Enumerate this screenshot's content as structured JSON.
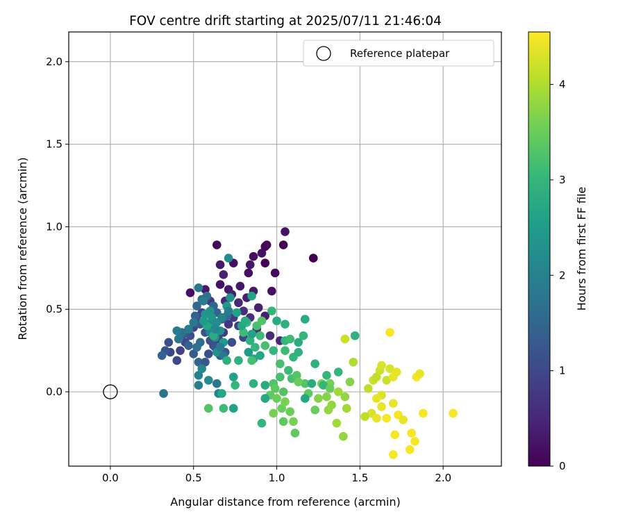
{
  "chart_data": {
    "type": "scatter",
    "title": "FOV centre drift starting at 2025/07/11 21:46:04",
    "xlabel": "Angular distance from reference (arcmin)",
    "ylabel": "Rotation from reference (arcmin)",
    "xlim": [
      -0.25,
      2.35
    ],
    "ylim": [
      -0.45,
      2.18
    ],
    "x_ticks": [
      0.0,
      0.5,
      1.0,
      1.5,
      2.0
    ],
    "x_tick_labels": [
      "0.0",
      "0.5",
      "1.0",
      "1.5",
      "2.0"
    ],
    "y_ticks": [
      0.0,
      0.5,
      1.0,
      1.5,
      2.0
    ],
    "y_tick_labels": [
      "0.0",
      "0.5",
      "1.0",
      "1.5",
      "2.0"
    ],
    "grid": true,
    "legend": {
      "position": "top-right",
      "entries": [
        {
          "label": "Reference platepar",
          "marker": "open-circle"
        }
      ]
    },
    "reference_point": {
      "x": 0.0,
      "y": 0.0
    },
    "colormap": "viridis",
    "colorbar": {
      "label": "Hours from first FF file",
      "range": [
        0,
        4.55
      ],
      "ticks": [
        0,
        1,
        2,
        3,
        4
      ],
      "tick_labels": [
        "0",
        "1",
        "2",
        "3",
        "4"
      ],
      "stops": [
        "#440154",
        "#482878",
        "#3e4989",
        "#31688e",
        "#26828e",
        "#1f9e89",
        "#35b779",
        "#6ece58",
        "#b5de2b",
        "#fde725"
      ]
    },
    "points": [
      [
        0.48,
        0.6,
        0.2
      ],
      [
        0.57,
        0.62,
        0.3
      ],
      [
        0.64,
        0.89,
        0.1
      ],
      [
        0.66,
        0.77,
        0.3
      ],
      [
        0.68,
        0.71,
        0.4
      ],
      [
        0.71,
        0.62,
        0.3
      ],
      [
        0.74,
        0.78,
        0.2
      ],
      [
        0.78,
        0.64,
        0.3
      ],
      [
        0.82,
        0.57,
        0.4
      ],
      [
        0.83,
        0.72,
        0.2
      ],
      [
        0.84,
        0.77,
        0.3
      ],
      [
        0.86,
        0.82,
        0.2
      ],
      [
        0.86,
        0.61,
        0.3
      ],
      [
        0.89,
        0.51,
        0.4
      ],
      [
        0.91,
        0.84,
        0.2
      ],
      [
        0.93,
        0.88,
        0.1
      ],
      [
        0.93,
        0.78,
        0.0
      ],
      [
        0.94,
        0.89,
        0.1
      ],
      [
        0.97,
        0.61,
        0.2
      ],
      [
        0.99,
        0.72,
        0.1
      ],
      [
        1.04,
        0.89,
        0.0
      ],
      [
        1.05,
        0.97,
        0.2
      ],
      [
        1.22,
        0.81,
        0.0
      ],
      [
        0.66,
        0.65,
        0.2
      ],
      [
        0.69,
        0.55,
        0.5
      ],
      [
        0.73,
        0.59,
        0.4
      ],
      [
        0.77,
        0.54,
        0.5
      ],
      [
        0.8,
        0.49,
        0.6
      ],
      [
        0.84,
        0.45,
        0.6
      ],
      [
        0.88,
        0.38,
        0.7
      ],
      [
        0.93,
        0.46,
        0.4
      ],
      [
        0.96,
        0.34,
        0.6
      ],
      [
        1.02,
        0.31,
        0.5
      ],
      [
        0.6,
        0.55,
        0.8
      ],
      [
        0.55,
        0.48,
        0.9
      ],
      [
        0.52,
        0.44,
        1.0
      ],
      [
        0.5,
        0.39,
        1.0
      ],
      [
        0.48,
        0.34,
        1.1
      ],
      [
        0.45,
        0.3,
        1.0
      ],
      [
        0.42,
        0.25,
        0.9
      ],
      [
        0.4,
        0.19,
        1.0
      ],
      [
        0.35,
        0.3,
        1.1
      ],
      [
        0.36,
        0.24,
        1.0
      ],
      [
        0.33,
        0.25,
        1.2
      ],
      [
        0.31,
        0.22,
        1.4
      ],
      [
        0.44,
        0.35,
        1.3
      ],
      [
        0.47,
        0.28,
        1.4
      ],
      [
        0.5,
        0.23,
        1.3
      ],
      [
        0.53,
        0.18,
        1.5
      ],
      [
        0.57,
        0.18,
        1.2
      ],
      [
        0.59,
        0.23,
        1.1
      ],
      [
        0.62,
        0.28,
        1.0
      ],
      [
        0.65,
        0.32,
        0.9
      ],
      [
        0.68,
        0.36,
        0.8
      ],
      [
        0.71,
        0.41,
        0.7
      ],
      [
        0.74,
        0.45,
        0.8
      ],
      [
        0.77,
        0.4,
        0.9
      ],
      [
        0.8,
        0.33,
        1.0
      ],
      [
        0.73,
        0.3,
        1.1
      ],
      [
        0.69,
        0.24,
        1.2
      ],
      [
        0.66,
        0.22,
        1.3
      ],
      [
        0.63,
        0.27,
        1.2
      ],
      [
        0.6,
        0.31,
        1.1
      ],
      [
        0.57,
        0.36,
        1.2
      ],
      [
        0.54,
        0.41,
        1.3
      ],
      [
        0.51,
        0.46,
        1.4
      ],
      [
        0.52,
        0.52,
        1.5
      ],
      [
        0.55,
        0.56,
        1.6
      ],
      [
        0.58,
        0.58,
        1.7
      ],
      [
        0.62,
        0.52,
        1.5
      ],
      [
        0.64,
        0.48,
        1.4
      ],
      [
        0.67,
        0.44,
        1.5
      ],
      [
        0.7,
        0.46,
        1.6
      ],
      [
        0.54,
        0.3,
        1.6
      ],
      [
        0.52,
        0.27,
        1.7
      ],
      [
        0.5,
        0.42,
        1.8
      ],
      [
        0.47,
        0.38,
        1.9
      ],
      [
        0.43,
        0.36,
        1.7
      ],
      [
        0.41,
        0.32,
        1.8
      ],
      [
        0.4,
        0.37,
        1.9
      ],
      [
        0.53,
        0.63,
        1.8
      ],
      [
        0.56,
        0.55,
        1.9
      ],
      [
        0.59,
        0.41,
        2.0
      ],
      [
        0.6,
        0.36,
        2.1
      ],
      [
        0.63,
        0.33,
        2.2
      ],
      [
        0.53,
        0.1,
        2.0
      ],
      [
        0.53,
        0.04,
        1.9
      ],
      [
        0.55,
        0.14,
        2.1
      ],
      [
        0.59,
        0.07,
        2.2
      ],
      [
        0.64,
        0.05,
        1.8
      ],
      [
        0.65,
        -0.01,
        2.0
      ],
      [
        0.32,
        -0.01,
        1.7
      ],
      [
        0.64,
        0.24,
        2.3
      ],
      [
        0.71,
        0.81,
        2.2
      ],
      [
        0.7,
        0.52,
        2.4
      ],
      [
        0.72,
        0.57,
        2.3
      ],
      [
        0.61,
        0.45,
        2.4
      ],
      [
        0.62,
        0.39,
        2.5
      ],
      [
        0.66,
        0.37,
        2.3
      ],
      [
        0.68,
        0.3,
        2.5
      ],
      [
        0.76,
        0.48,
        2.6
      ],
      [
        0.83,
        0.24,
        2.5
      ],
      [
        0.86,
        0.2,
        2.6
      ],
      [
        0.9,
        0.22,
        2.7
      ],
      [
        0.74,
        0.09,
        2.6
      ],
      [
        0.74,
        -0.1,
        2.6
      ],
      [
        0.67,
        -0.01,
        2.7
      ],
      [
        0.93,
        0.04,
        2.8
      ],
      [
        1.13,
        0.3,
        2.8
      ],
      [
        1.17,
        0.44,
        2.8
      ],
      [
        1.23,
        0.17,
        2.9
      ],
      [
        1.16,
        0.34,
        3.0
      ],
      [
        1.3,
        0.1,
        3.0
      ],
      [
        1.37,
        0.12,
        3.0
      ],
      [
        1.47,
        0.34,
        2.9
      ],
      [
        1.0,
        0.43,
        2.8
      ],
      [
        1.05,
        0.41,
        2.9
      ],
      [
        0.97,
        0.49,
        3.0
      ],
      [
        1.05,
        0.25,
        3.1
      ],
      [
        1.02,
        0.17,
        3.2
      ],
      [
        0.98,
        0.05,
        3.3
      ],
      [
        1.02,
        0.09,
        3.2
      ],
      [
        1.07,
        0.13,
        3.1
      ],
      [
        1.09,
        0.08,
        3.2
      ],
      [
        1.12,
        0.1,
        3.3
      ],
      [
        1.04,
        0.0,
        3.3
      ],
      [
        0.99,
        0.02,
        3.4
      ],
      [
        0.96,
        -0.02,
        3.4
      ],
      [
        1.0,
        -0.04,
        3.5
      ],
      [
        1.03,
        -0.1,
        3.5
      ],
      [
        0.98,
        -0.13,
        3.6
      ],
      [
        1.08,
        -0.12,
        3.5
      ],
      [
        1.1,
        -0.18,
        3.6
      ],
      [
        1.11,
        -0.25,
        3.4
      ],
      [
        1.17,
        0.05,
        3.3
      ],
      [
        1.19,
        -0.01,
        3.4
      ],
      [
        1.23,
        -0.11,
        3.5
      ],
      [
        1.27,
        0.05,
        3.6
      ],
      [
        1.3,
        -0.03,
        3.7
      ],
      [
        1.32,
        0.05,
        3.6
      ],
      [
        1.33,
        -0.08,
        3.8
      ],
      [
        1.37,
        0.0,
        3.9
      ],
      [
        1.41,
        -0.03,
        3.8
      ],
      [
        1.36,
        -0.19,
        3.9
      ],
      [
        1.4,
        -0.27,
        3.8
      ],
      [
        1.42,
        -0.1,
        3.9
      ],
      [
        1.44,
        0.06,
        3.7
      ],
      [
        1.46,
        0.18,
        4.0
      ],
      [
        1.55,
        0.02,
        4.1
      ],
      [
        1.58,
        0.07,
        4.2
      ],
      [
        1.6,
        0.09,
        4.1
      ],
      [
        1.62,
        0.13,
        4.2
      ],
      [
        1.63,
        0.16,
        4.3
      ],
      [
        1.66,
        0.07,
        4.2
      ],
      [
        1.68,
        0.14,
        4.3
      ],
      [
        1.7,
        0.09,
        4.4
      ],
      [
        1.72,
        0.12,
        4.4
      ],
      [
        1.68,
        0.36,
        4.5
      ],
      [
        1.63,
        -0.02,
        4.3
      ],
      [
        1.6,
        -0.04,
        4.4
      ],
      [
        1.57,
        -0.13,
        4.3
      ],
      [
        1.6,
        -0.16,
        4.4
      ],
      [
        1.63,
        -0.09,
        4.4
      ],
      [
        1.66,
        -0.16,
        4.5
      ],
      [
        1.7,
        -0.07,
        4.4
      ],
      [
        1.73,
        -0.14,
        4.5
      ],
      [
        1.76,
        -0.17,
        4.4
      ],
      [
        1.81,
        -0.25,
        4.5
      ],
      [
        1.83,
        -0.3,
        4.5
      ],
      [
        1.84,
        0.09,
        4.5
      ],
      [
        1.86,
        0.11,
        4.4
      ],
      [
        1.88,
        -0.13,
        4.5
      ],
      [
        1.71,
        -0.26,
        4.5
      ],
      [
        1.7,
        -0.38,
        4.5
      ],
      [
        1.8,
        -0.35,
        4.5
      ],
      [
        2.06,
        -0.13,
        4.5
      ],
      [
        1.53,
        -0.15,
        4.1
      ],
      [
        1.41,
        0.32,
        4.2
      ],
      [
        0.88,
        0.4,
        3.2
      ],
      [
        0.9,
        0.34,
        3.1
      ],
      [
        0.87,
        0.27,
        3.0
      ],
      [
        0.85,
        0.19,
        3.2
      ],
      [
        0.91,
        0.43,
        3.3
      ],
      [
        0.82,
        0.42,
        3.0
      ],
      [
        0.8,
        0.36,
        3.1
      ],
      [
        0.77,
        0.19,
        2.9
      ],
      [
        0.75,
        0.04,
        3.0
      ],
      [
        0.68,
        -0.1,
        3.1
      ],
      [
        0.59,
        -0.1,
        3.3
      ],
      [
        0.86,
        0.05,
        2.9
      ],
      [
        0.91,
        -0.19,
        3.0
      ],
      [
        0.93,
        -0.04,
        2.7
      ],
      [
        0.98,
        0.25,
        3.0
      ],
      [
        0.93,
        0.28,
        3.2
      ],
      [
        1.05,
        0.31,
        3.0
      ],
      [
        1.08,
        0.32,
        3.1
      ],
      [
        1.1,
        0.21,
        3.0
      ],
      [
        1.13,
        0.24,
        2.9
      ],
      [
        0.85,
        0.58,
        2.6
      ],
      [
        1.17,
        -0.04,
        2.7
      ],
      [
        1.21,
        0.05,
        2.8
      ],
      [
        1.28,
        0.04,
        3.0
      ],
      [
        0.66,
        0.27,
        1.9
      ],
      [
        0.68,
        0.22,
        1.8
      ],
      [
        0.7,
        0.19,
        2.9
      ],
      [
        0.62,
        0.34,
        2.8
      ],
      [
        0.58,
        0.4,
        2.7
      ],
      [
        0.56,
        0.43,
        2.5
      ],
      [
        0.57,
        0.47,
        2.4
      ],
      [
        0.6,
        0.49,
        2.3
      ],
      [
        0.64,
        0.42,
        2.2
      ],
      [
        0.63,
        0.38,
        2.1
      ],
      [
        0.67,
        0.45,
        2.0
      ],
      [
        0.71,
        0.49,
        1.9
      ],
      [
        0.79,
        0.4,
        2.7
      ],
      [
        0.81,
        0.43,
        2.8
      ],
      [
        0.84,
        0.31,
        2.9
      ],
      [
        0.85,
        0.35,
        2.6
      ],
      [
        1.32,
        0.02,
        3.5
      ],
      [
        1.25,
        -0.04,
        3.7
      ],
      [
        1.31,
        -0.11,
        3.8
      ],
      [
        1.04,
        -0.18,
        3.4
      ],
      [
        1.05,
        -0.06,
        3.6
      ],
      [
        1.13,
        0.06,
        3.5
      ]
    ]
  }
}
